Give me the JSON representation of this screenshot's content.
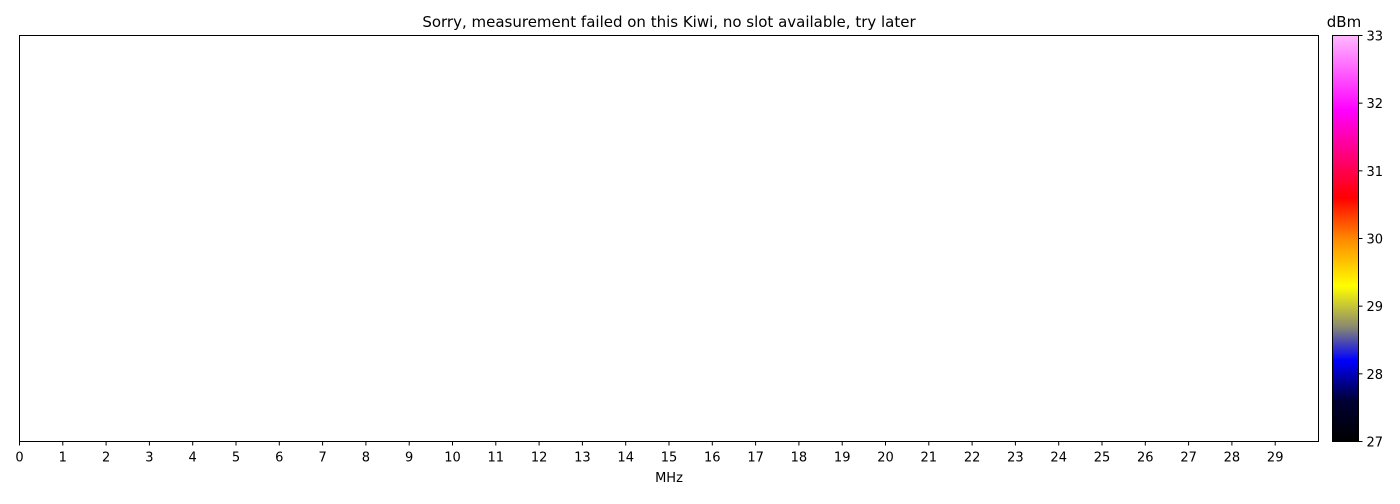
{
  "chart_data": {
    "type": "heatmap",
    "title": "Sorry, measurement failed on this Kiwi, no slot available, try later",
    "xlabel": "MHz",
    "ylabel": "",
    "xlim": [
      0,
      30
    ],
    "xticks": [
      "0",
      "1",
      "2",
      "3",
      "4",
      "5",
      "6",
      "7",
      "8",
      "9",
      "10",
      "11",
      "12",
      "13",
      "14",
      "15",
      "16",
      "17",
      "18",
      "19",
      "20",
      "21",
      "22",
      "23",
      "24",
      "25",
      "26",
      "27",
      "28",
      "29"
    ],
    "values": [],
    "colorbar": {
      "label": "dBm",
      "range": [
        27,
        33
      ],
      "ticks": [
        "27",
        "28",
        "29",
        "30",
        "31",
        "32",
        "33"
      ],
      "colormap": [
        {
          "value": 27.0,
          "color": "#000000"
        },
        {
          "value": 27.6,
          "color": "#000033"
        },
        {
          "value": 28.2,
          "color": "#0000ff"
        },
        {
          "value": 28.7,
          "color": "#8a8a70"
        },
        {
          "value": 29.3,
          "color": "#ffff00"
        },
        {
          "value": 30.0,
          "color": "#ff8800"
        },
        {
          "value": 30.6,
          "color": "#ff0000"
        },
        {
          "value": 31.3,
          "color": "#ff0088"
        },
        {
          "value": 31.9,
          "color": "#ff00ff"
        },
        {
          "value": 33.0,
          "color": "#ffb8ff"
        }
      ]
    }
  }
}
